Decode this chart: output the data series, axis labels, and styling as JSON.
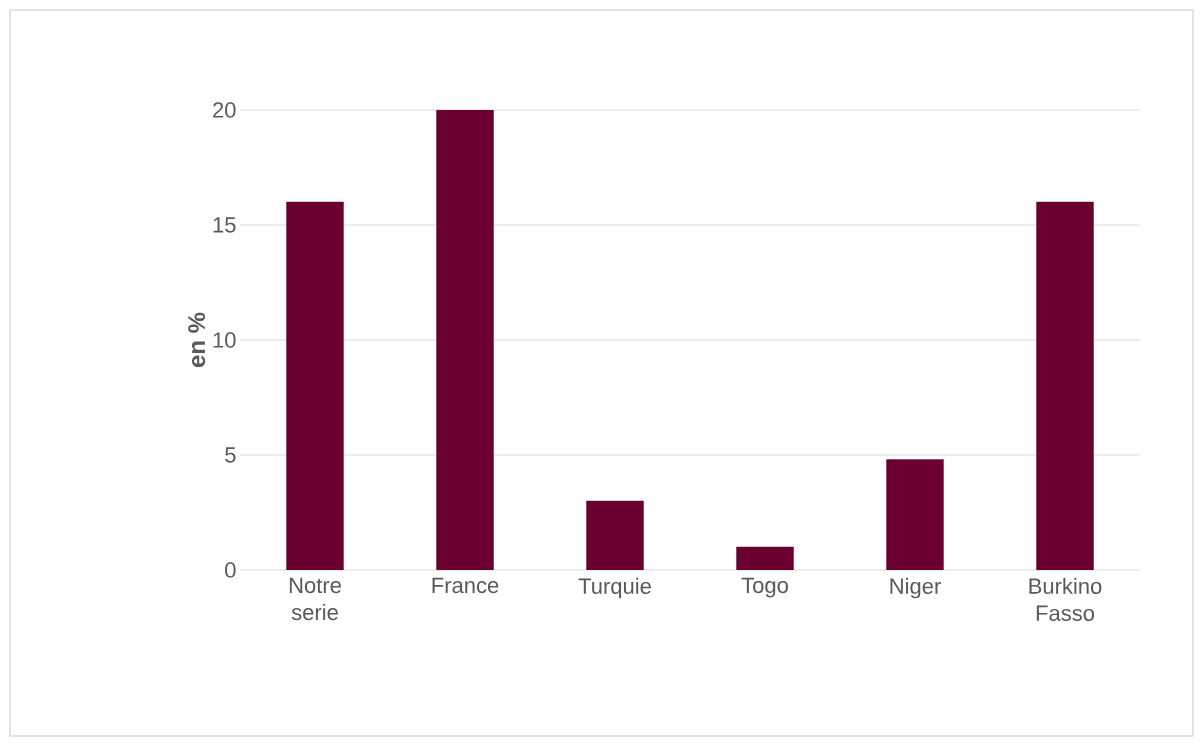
{
  "chart_data": {
    "type": "bar",
    "ylabel": "en %",
    "categories": [
      "Notre serie",
      "France",
      "Turquie",
      "Togo",
      "Niger",
      "Burkino Fasso"
    ],
    "values": [
      16,
      20,
      3,
      1,
      4.8,
      16
    ],
    "color": "#6b0030",
    "ylim": [
      0,
      20
    ],
    "yticks": [
      0,
      5,
      10,
      15,
      20
    ],
    "grid": "y"
  }
}
